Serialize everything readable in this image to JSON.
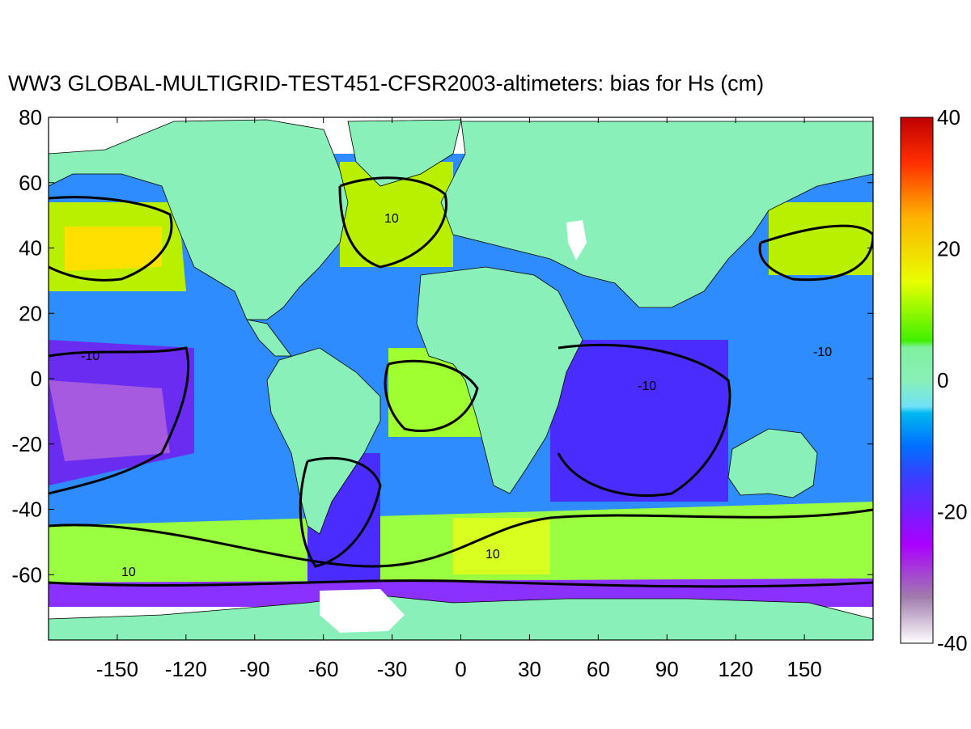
{
  "title": "WW3 GLOBAL-MULTIGRID-TEST451-CFSR2003-altimeters: bias for Hs (cm)",
  "chart_data": {
    "type": "heatmap",
    "title": "WW3 GLOBAL-MULTIGRID-TEST451-CFSR2003-altimeters: bias for Hs (cm)",
    "xlabel": "",
    "ylabel": "",
    "xlim": [
      -180,
      180
    ],
    "ylim": [
      -80,
      80
    ],
    "x_ticks": [
      "-150",
      "-120",
      "-90",
      "-60",
      "-30",
      "0",
      "30",
      "60",
      "90",
      "120",
      "150"
    ],
    "y_ticks": [
      "80",
      "60",
      "40",
      "20",
      "0",
      "-20",
      "-40",
      "-60"
    ],
    "colorbar": {
      "range": [
        -40,
        40
      ],
      "ticks": [
        "40",
        "20",
        "0",
        "-20",
        "-40"
      ],
      "stops": [
        {
          "value": -40,
          "color": "#ffffff"
        },
        {
          "value": -33,
          "color": "#a07cac"
        },
        {
          "value": -25,
          "color": "#aa00ff"
        },
        {
          "value": -15,
          "color": "#3c3cff"
        },
        {
          "value": -10,
          "color": "#0070ff"
        },
        {
          "value": -5,
          "color": "#00b8f0"
        },
        {
          "value": -4,
          "color": "#70e0f8"
        },
        {
          "value": 0,
          "color": "#88f0b8"
        },
        {
          "value": 5,
          "color": "#80f0a0"
        },
        {
          "value": 6,
          "color": "#40f000"
        },
        {
          "value": 15,
          "color": "#e8ff00"
        },
        {
          "value": 25,
          "color": "#ffb000"
        },
        {
          "value": 33,
          "color": "#ff3000"
        },
        {
          "value": 40,
          "color": "#c00000"
        }
      ]
    },
    "contour_levels": [
      -10,
      10
    ],
    "contour_labels": [
      "-10",
      "10"
    ],
    "grid": false,
    "land_color": "#88f0b8"
  }
}
